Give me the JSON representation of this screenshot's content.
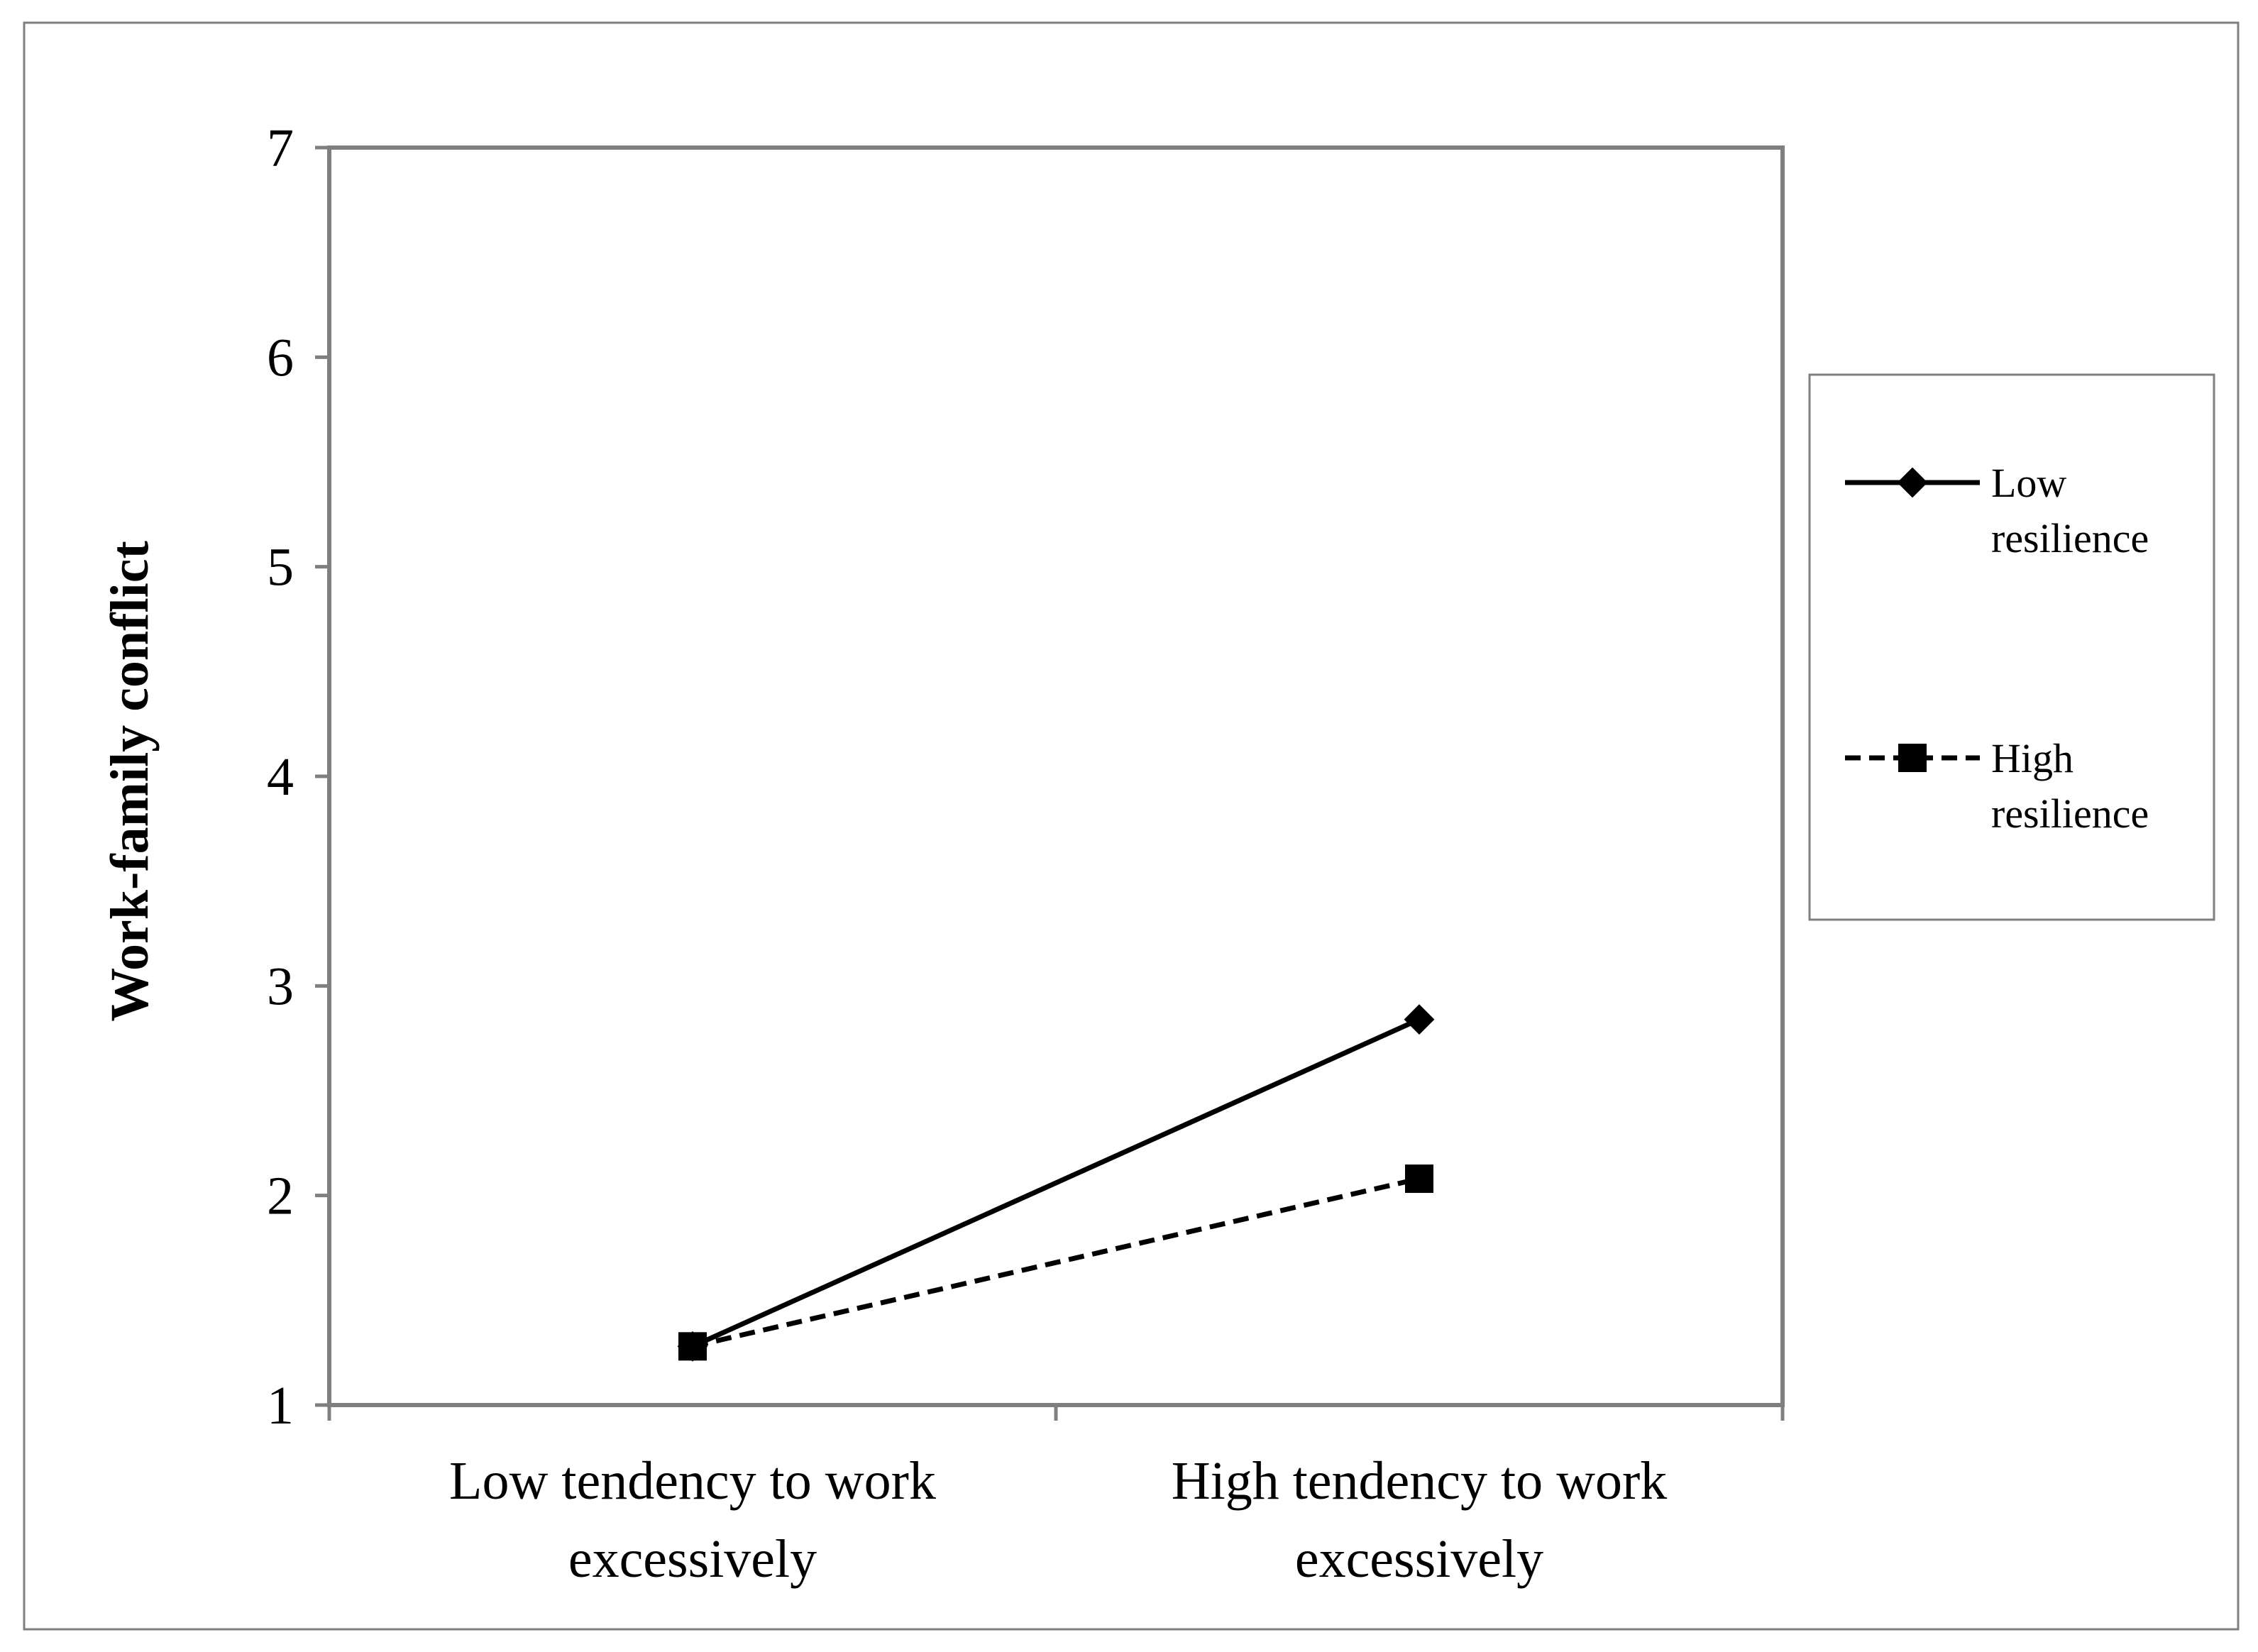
{
  "chart_data": {
    "type": "line",
    "title": "",
    "xlabel": "",
    "ylabel": "Work-family conflict",
    "ylim": [
      1,
      7
    ],
    "yticks": [
      "1",
      "2",
      "3",
      "4",
      "5",
      "6",
      "7"
    ],
    "categories": [
      [
        "Low tendency to work",
        "excessively"
      ],
      [
        "High tendency to work",
        "excessively"
      ]
    ],
    "series": [
      {
        "name": [
          "Low",
          "resilience"
        ],
        "values": [
          1.28,
          2.84
        ],
        "marker": "diamond",
        "line_style": "solid",
        "color": "#000000"
      },
      {
        "name": [
          "High",
          "resilience"
        ],
        "values": [
          1.28,
          2.08
        ],
        "marker": "square",
        "line_style": "dashed",
        "color": "#000000"
      }
    ],
    "grid": false,
    "legend_position": "right"
  }
}
